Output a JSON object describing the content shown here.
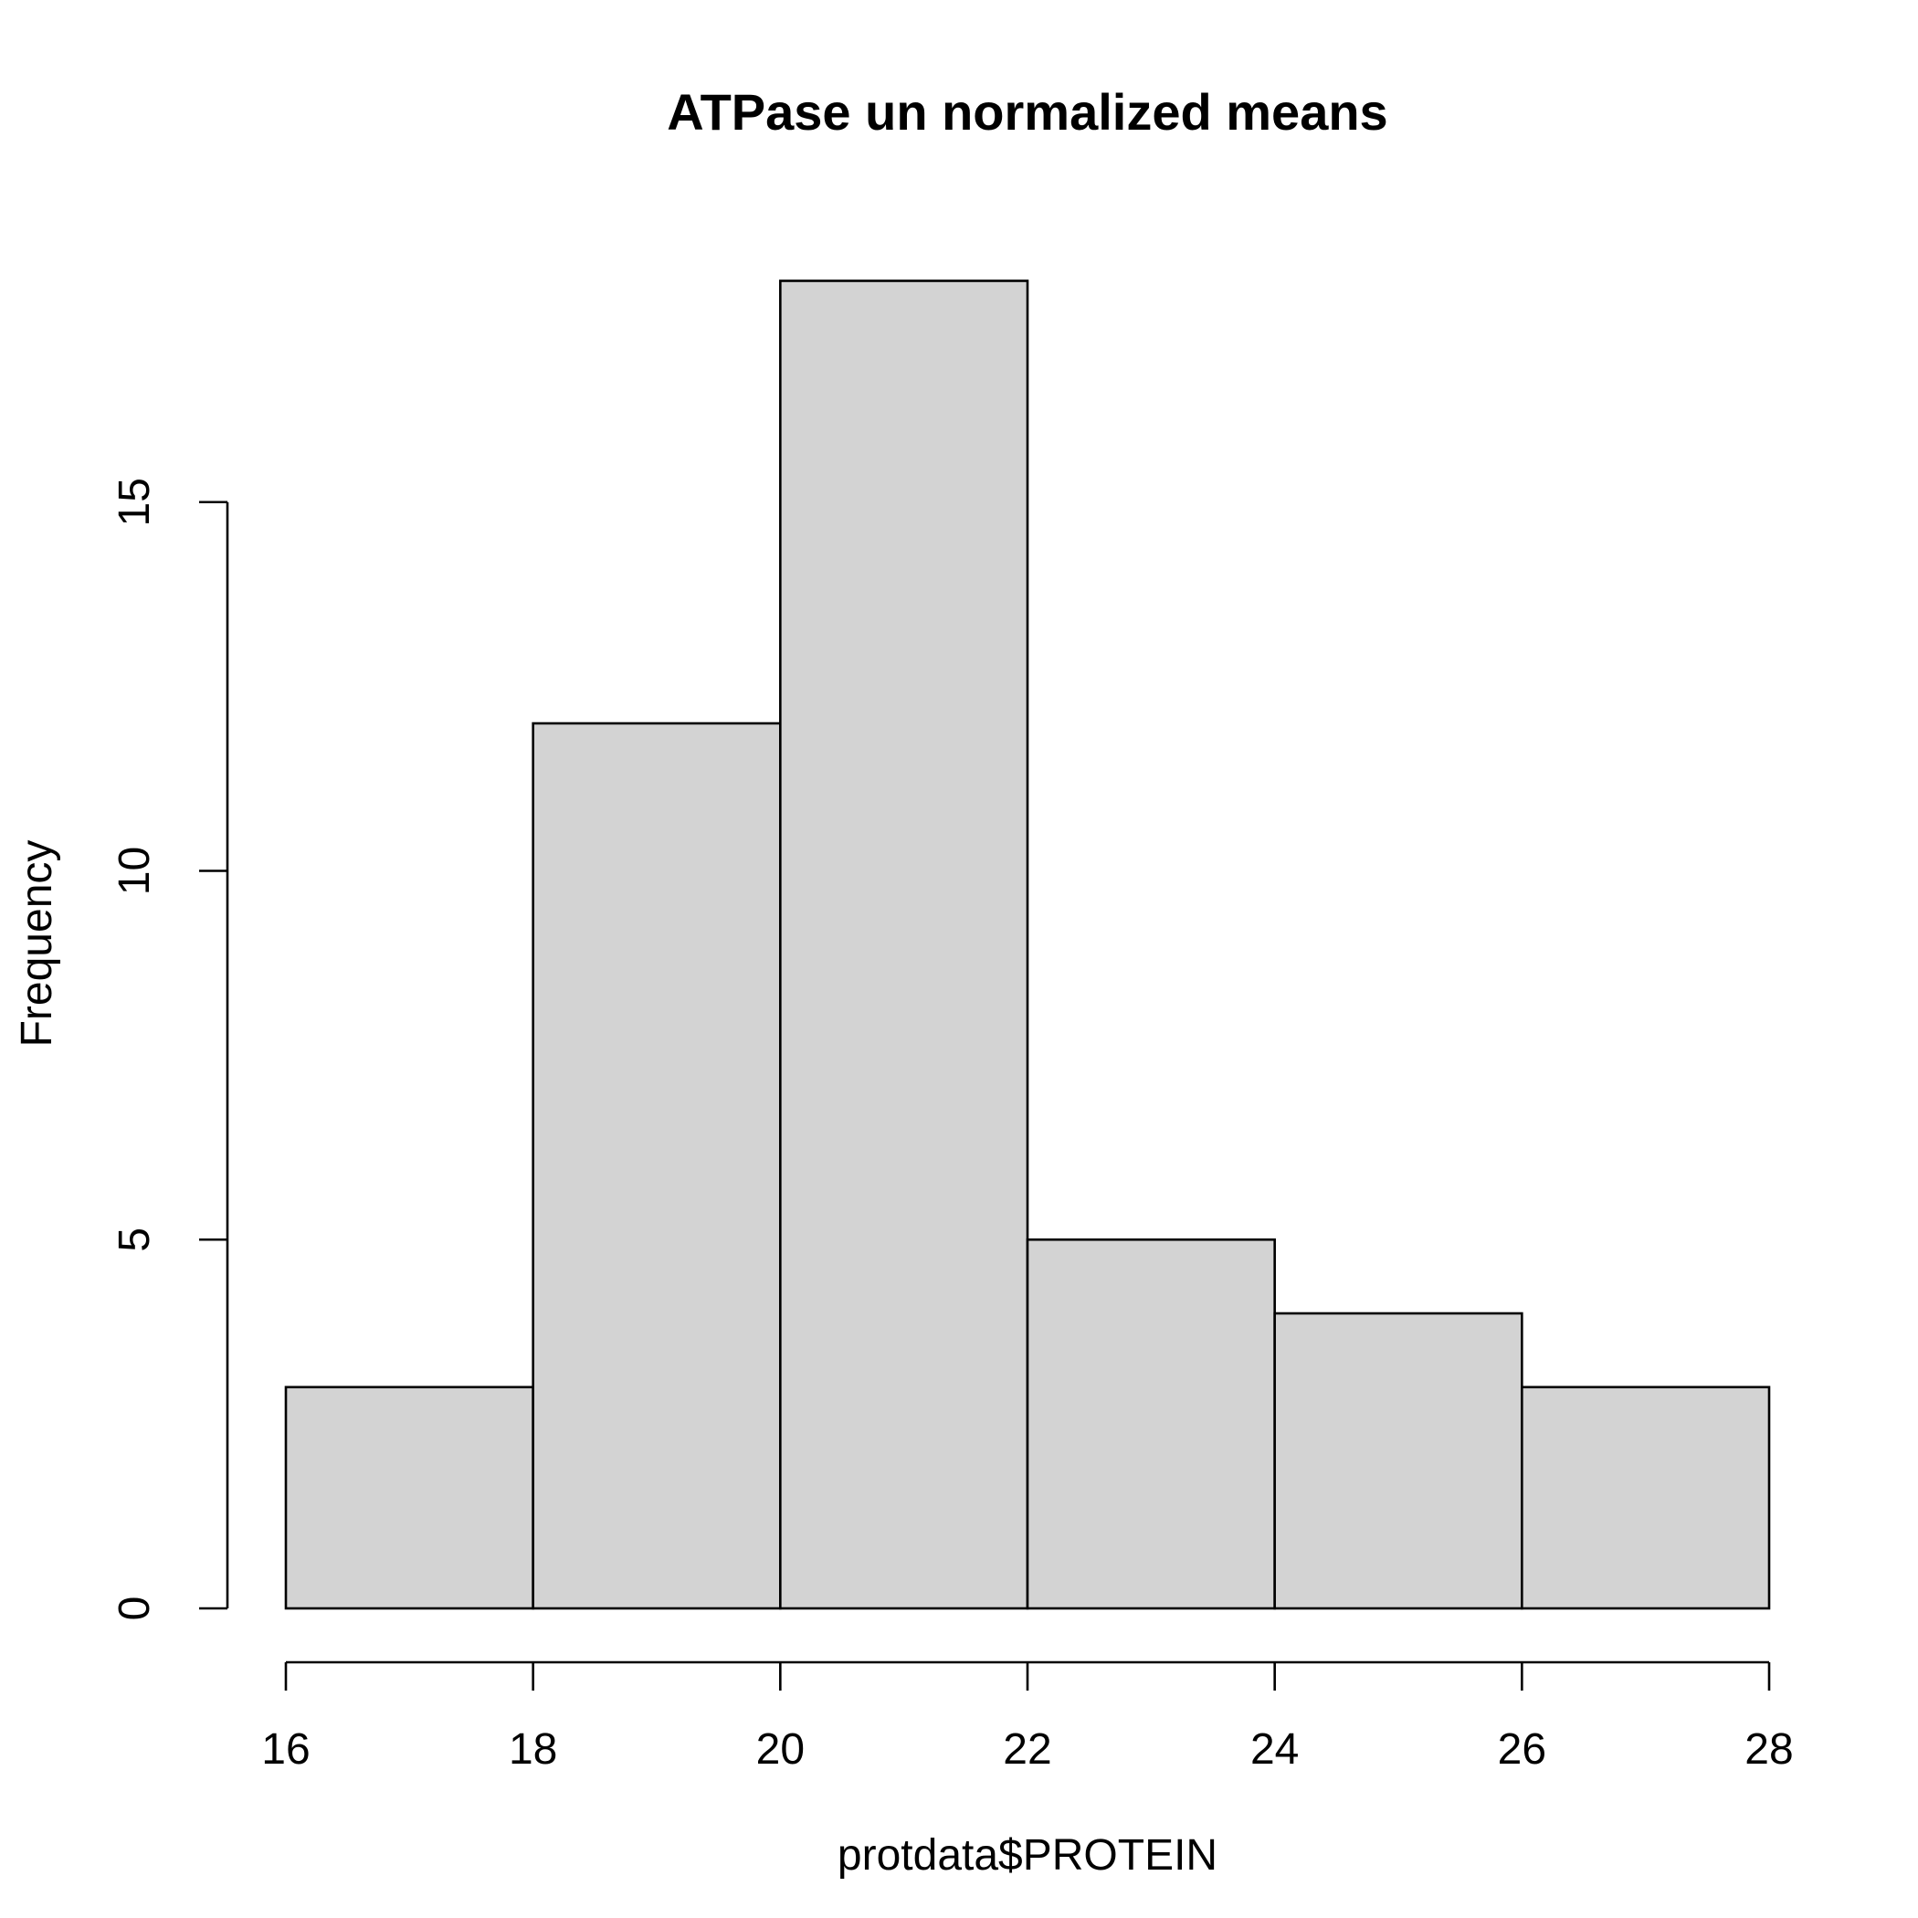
{
  "chart_data": {
    "type": "bar",
    "title": "ATPase un normalized means",
    "xlabel": "protdata$PROTEIN",
    "ylabel": "Frequency",
    "bins": [
      {
        "x0": 16,
        "x1": 18,
        "count": 3
      },
      {
        "x0": 18,
        "x1": 20,
        "count": 12
      },
      {
        "x0": 20,
        "x1": 22,
        "count": 18
      },
      {
        "x0": 22,
        "x1": 24,
        "count": 5
      },
      {
        "x0": 24,
        "x1": 26,
        "count": 4
      },
      {
        "x0": 26,
        "x1": 28,
        "count": 3
      }
    ],
    "xticks": [
      16,
      18,
      20,
      22,
      24,
      26,
      28
    ],
    "yticks": [
      0,
      5,
      10,
      15
    ],
    "xlim": [
      16,
      28
    ],
    "ylim": [
      0,
      18
    ],
    "grid": false,
    "bar_fill": "#d3d3d3",
    "bar_stroke": "#000000"
  }
}
